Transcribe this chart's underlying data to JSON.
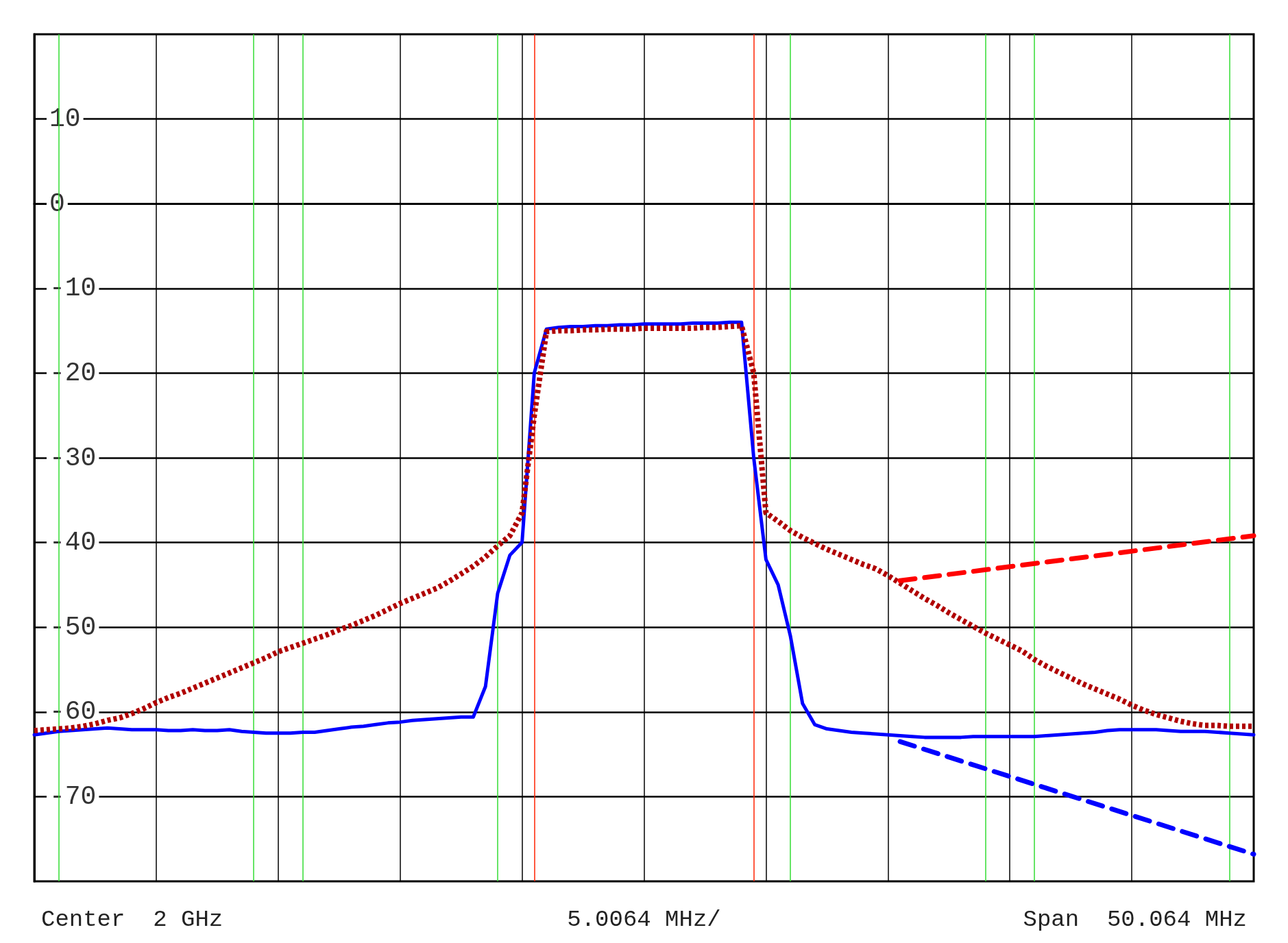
{
  "chart_data": {
    "type": "line",
    "ylim": [
      -80,
      20
    ],
    "yticks": [
      10,
      0,
      -10,
      -20,
      -30,
      -40,
      -50,
      -60,
      -70
    ],
    "categories": [
      null,
      null,
      null,
      null,
      null,
      null,
      null,
      null,
      null,
      null,
      null,
      null,
      null,
      null,
      null,
      null,
      null,
      null,
      null,
      null,
      null,
      null,
      null,
      null,
      null,
      null,
      null,
      null,
      null,
      null,
      null,
      null,
      null,
      null,
      null,
      null,
      null,
      null,
      null,
      null,
      null,
      null,
      null,
      null,
      null,
      null,
      null,
      null,
      null,
      null,
      null,
      null,
      null,
      null,
      null,
      null,
      null,
      null,
      null,
      null,
      null,
      null,
      null,
      null,
      null,
      null,
      null,
      null,
      null,
      null,
      null,
      null,
      null,
      null,
      null,
      null,
      null,
      null,
      null,
      null,
      null,
      null,
      null,
      null,
      null,
      null,
      null,
      null,
      null,
      null,
      null,
      null,
      null,
      null,
      null,
      null,
      null,
      null,
      null,
      null,
      null
    ],
    "tick_labels": "y",
    "grid": true,
    "marker": "none",
    "annotations": [
      "Center  2 GHz",
      "5.0064 MHz/",
      "Span  50.064 MHz"
    ],
    "series": [
      {
        "color": "#0000ff",
        "line_style": "solid",
        "values": [
          -62.7,
          -62.5,
          -62.3,
          -62.2,
          -62.1,
          -62.0,
          -61.9,
          -62.0,
          -62.1,
          -62.1,
          -62.1,
          -62.2,
          -62.2,
          -62.1,
          -62.2,
          -62.2,
          -62.1,
          -62.3,
          -62.4,
          -62.5,
          -62.5,
          -62.5,
          -62.4,
          -62.4,
          -62.2,
          -62.0,
          -61.8,
          -61.7,
          -61.5,
          -61.3,
          -61.2,
          -61.0,
          -60.9,
          -60.8,
          -60.7,
          -60.6,
          -60.6,
          -57.0,
          -46.0,
          -41.5,
          -40.0,
          -20.0,
          -14.8,
          -14.6,
          -14.5,
          -14.5,
          -14.4,
          -14.4,
          -14.3,
          -14.3,
          -14.2,
          -14.2,
          -14.2,
          -14.2,
          -14.1,
          -14.1,
          -14.1,
          -14.0,
          -14.0,
          -30.0,
          -42.0,
          -45.0,
          -51.0,
          -59.0,
          -61.5,
          -62.0,
          -62.2,
          -62.4,
          -62.5,
          -62.6,
          -62.7,
          -62.8,
          -62.9,
          -63.0,
          -63.0,
          -63.0,
          -63.0,
          -62.9,
          -62.9,
          -62.9,
          -62.9,
          -62.9,
          -62.9,
          -62.8,
          -62.7,
          -62.6,
          -62.5,
          -62.4,
          -62.2,
          -62.1,
          -62.1,
          -62.1,
          -62.1,
          -62.2,
          -62.3,
          -62.3,
          -62.3,
          -62.4,
          -62.5,
          -62.6,
          -62.7
        ]
      },
      {
        "color": "#b00000",
        "line_style": "dotted",
        "values": [
          -62.2,
          -62.1,
          -62.0,
          -61.9,
          -61.7,
          -61.4,
          -61.0,
          -60.7,
          -60.2,
          -59.6,
          -58.9,
          -58.3,
          -57.8,
          -57.2,
          -56.6,
          -56.0,
          -55.4,
          -54.8,
          -54.2,
          -53.6,
          -52.9,
          -52.4,
          -51.9,
          -51.4,
          -50.9,
          -50.3,
          -49.8,
          -49.2,
          -48.6,
          -47.9,
          -47.2,
          -46.6,
          -46.0,
          -45.4,
          -44.6,
          -43.7,
          -42.8,
          -41.7,
          -40.4,
          -39.2,
          -36.5,
          -25.0,
          -15.1,
          -15.0,
          -15.0,
          -14.9,
          -14.9,
          -14.8,
          -14.8,
          -14.8,
          -14.7,
          -14.7,
          -14.7,
          -14.7,
          -14.7,
          -14.6,
          -14.6,
          -14.5,
          -14.4,
          -20.0,
          -36.5,
          -37.5,
          -38.6,
          -39.4,
          -40.1,
          -40.8,
          -41.4,
          -42.0,
          -42.6,
          -43.1,
          -43.9,
          -44.8,
          -45.7,
          -46.6,
          -47.4,
          -48.3,
          -49.1,
          -49.9,
          -50.7,
          -51.4,
          -52.1,
          -52.8,
          -53.8,
          -54.6,
          -55.3,
          -56.0,
          -56.7,
          -57.3,
          -57.9,
          -58.5,
          -59.2,
          -59.8,
          -60.3,
          -60.7,
          -61.1,
          -61.4,
          -61.6,
          -61.6,
          -61.7,
          -61.7,
          -61.7
        ]
      },
      {
        "color": "#ff0000",
        "line_style": "dashed",
        "values": [
          null,
          null,
          null,
          null,
          null,
          null,
          null,
          null,
          null,
          null,
          null,
          null,
          null,
          null,
          null,
          null,
          null,
          null,
          null,
          null,
          null,
          null,
          null,
          null,
          null,
          null,
          null,
          null,
          null,
          null,
          null,
          null,
          null,
          null,
          null,
          null,
          null,
          null,
          null,
          null,
          null,
          null,
          null,
          null,
          null,
          null,
          null,
          null,
          null,
          null,
          null,
          null,
          null,
          null,
          null,
          null,
          null,
          null,
          null,
          null,
          null,
          null,
          null,
          null,
          null,
          null,
          null,
          null,
          null,
          null,
          null,
          -44.5,
          null,
          null,
          null,
          null,
          null,
          null,
          null,
          null,
          null,
          null,
          null,
          null,
          null,
          null,
          null,
          null,
          null,
          null,
          null,
          null,
          null,
          null,
          null,
          null,
          null,
          null,
          null,
          null,
          -39.2
        ]
      },
      {
        "color": "#0000ff",
        "line_style": "dashed",
        "values": [
          null,
          null,
          null,
          null,
          null,
          null,
          null,
          null,
          null,
          null,
          null,
          null,
          null,
          null,
          null,
          null,
          null,
          null,
          null,
          null,
          null,
          null,
          null,
          null,
          null,
          null,
          null,
          null,
          null,
          null,
          null,
          null,
          null,
          null,
          null,
          null,
          null,
          null,
          null,
          null,
          null,
          null,
          null,
          null,
          null,
          null,
          null,
          null,
          null,
          null,
          null,
          null,
          null,
          null,
          null,
          null,
          null,
          null,
          null,
          null,
          null,
          null,
          null,
          null,
          null,
          null,
          null,
          null,
          null,
          null,
          null,
          -63.5,
          null,
          null,
          null,
          null,
          null,
          null,
          null,
          null,
          null,
          null,
          null,
          null,
          null,
          null,
          null,
          null,
          null,
          null,
          null,
          null,
          null,
          null,
          null,
          null,
          null,
          null,
          null,
          null,
          -76.8
        ]
      }
    ]
  }
}
